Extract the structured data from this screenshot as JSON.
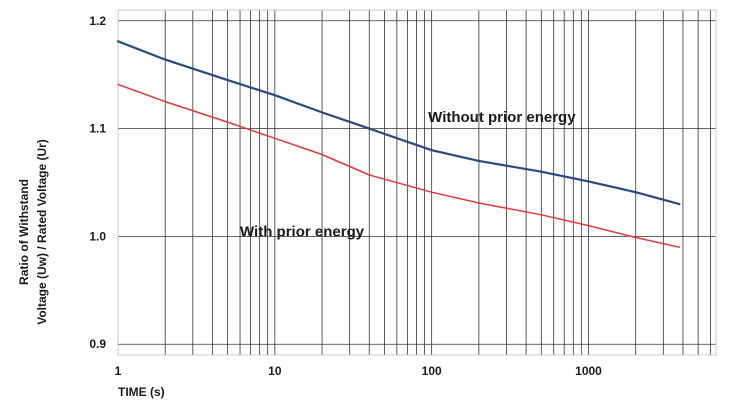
{
  "chart_data": {
    "type": "line",
    "title": "",
    "xlabel": "TIME (s)",
    "ylabel_line1": "Ratio of Withstand",
    "ylabel_line2": "Voltage (Uw) / Rated Voltage (Ur)",
    "x_scale": "log",
    "xlim": [
      1,
      6500
    ],
    "ylim": [
      0.89,
      1.21
    ],
    "x_ticks": [
      1,
      10,
      100,
      1000
    ],
    "x_tick_labels": [
      "1",
      "10",
      "100",
      "1000"
    ],
    "y_ticks": [
      0.9,
      1.0,
      1.1,
      1.2
    ],
    "y_tick_labels": [
      "0.9",
      "1.0",
      "1.1",
      "1.2"
    ],
    "grid": true,
    "series": [
      {
        "name": "Without prior energy",
        "color": "#2a4a7f",
        "points": [
          [
            1,
            1.181
          ],
          [
            2,
            1.164
          ],
          [
            5,
            1.145
          ],
          [
            10,
            1.131
          ],
          [
            20,
            1.115
          ],
          [
            40,
            1.1
          ],
          [
            100,
            1.08
          ],
          [
            200,
            1.07
          ],
          [
            500,
            1.06
          ],
          [
            1000,
            1.051
          ],
          [
            2000,
            1.041
          ],
          [
            3800,
            1.03
          ]
        ]
      },
      {
        "name": "With prior energy",
        "color": "#e03a3a",
        "points": [
          [
            1,
            1.141
          ],
          [
            2,
            1.125
          ],
          [
            5,
            1.106
          ],
          [
            10,
            1.091
          ],
          [
            20,
            1.076
          ],
          [
            40,
            1.057
          ],
          [
            100,
            1.041
          ],
          [
            200,
            1.031
          ],
          [
            500,
            1.02
          ],
          [
            1000,
            1.01
          ],
          [
            2000,
            0.999
          ],
          [
            3800,
            0.99
          ]
        ]
      }
    ],
    "annotations": [
      {
        "text": "Without prior energy",
        "x": 95,
        "y": 1.106
      },
      {
        "text": "With prior energy",
        "x": 6,
        "y": 1.0
      }
    ]
  }
}
